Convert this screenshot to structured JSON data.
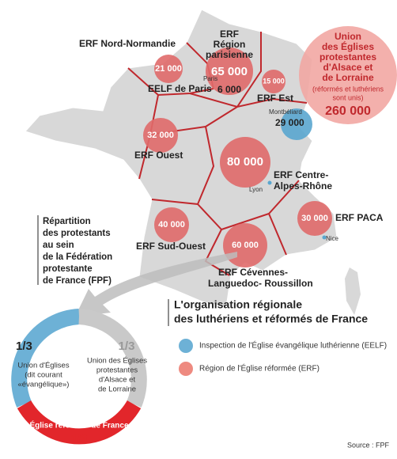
{
  "regions": [
    {
      "name": [
        "ERF Nord-Normandie"
      ],
      "value": "21 000"
    },
    {
      "name": [
        "ERF",
        "Région",
        "parisienne"
      ],
      "value": "65 000"
    },
    {
      "name": [
        "EELF de Paris"
      ],
      "value": "6 000"
    },
    {
      "name": [
        "ERF Est"
      ],
      "value": "15 000"
    },
    {
      "name": [
        "Union",
        "des Églises",
        "protestantes",
        "d'Alsace et",
        "de Lorraine"
      ],
      "note": [
        "(réformés et luthériens",
        "sont unis)"
      ],
      "value": "260 000"
    },
    {
      "value": "29 000"
    },
    {
      "name": [
        "ERF Ouest"
      ],
      "value": "32 000"
    },
    {
      "name": [
        "ERF Centre-",
        "Alpes-Rhône"
      ],
      "value": "80 000"
    },
    {
      "name": [
        "ERF Sud-Ouest"
      ],
      "value": "40 000"
    },
    {
      "name": [
        "ERF PACA"
      ],
      "value": "30 000"
    },
    {
      "name": [
        "ERF Cévennes-",
        "Languedoc- Roussillon"
      ],
      "value": "60 000"
    }
  ],
  "cities": [
    "Paris",
    "Montbéliard",
    "Lyon",
    "Nice"
  ],
  "donut": {
    "title": [
      "Répartition",
      "des protestants",
      "au sein",
      "de la Fédération",
      "protestante",
      "de France (FPF)"
    ],
    "segments": [
      {
        "share": "1/3",
        "label": [
          "Union d'Églises",
          "(dit courant",
          "«évangélique»)"
        ]
      },
      {
        "share": "1/3",
        "label": [
          "Union des Églises",
          "protestantes",
          "d'Alsace et",
          "de Lorraine",
          ""
        ]
      },
      {
        "share": "1/3",
        "label": [
          "Église réformée de France"
        ]
      }
    ]
  },
  "legend": {
    "title": [
      "L'organisation régionale",
      "des luthériens et réformés de France"
    ],
    "items": [
      "Inspection de l'Église évangélique luthérienne (EELF)",
      "Région de l'Église réformée (ERF)"
    ]
  },
  "source": "Source : FPF"
}
